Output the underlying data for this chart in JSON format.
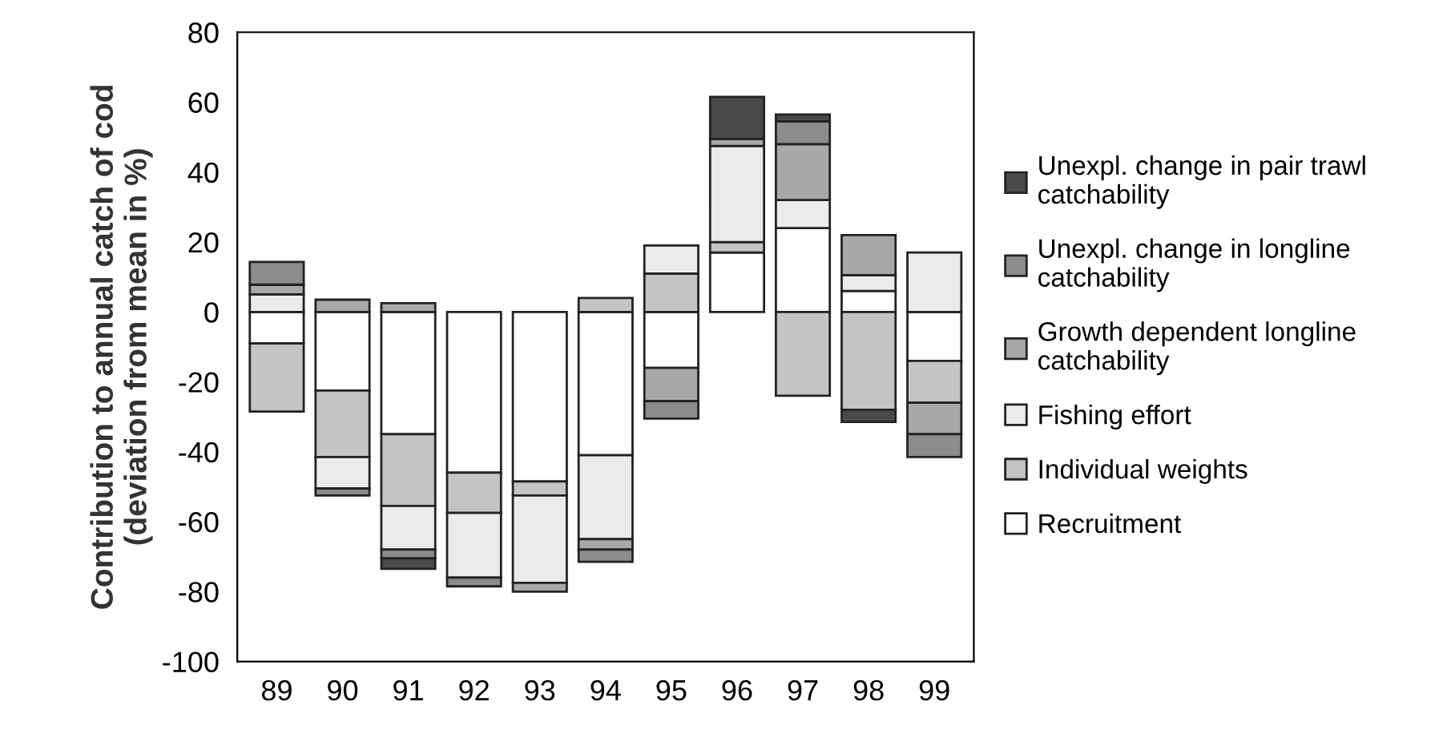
{
  "chart_data": {
    "type": "bar",
    "stacked": true,
    "ylabel": "Contribution to annual catch of cod\n(deviation from mean in %)",
    "categories": [
      "89",
      "90",
      "91",
      "92",
      "93",
      "94",
      "95",
      "96",
      "97",
      "98",
      "99"
    ],
    "ylim": [
      -100,
      80
    ],
    "yticks": [
      -100,
      -80,
      -60,
      -40,
      -20,
      0,
      20,
      40,
      60,
      80
    ],
    "grid": false,
    "legend": "right",
    "series": [
      {
        "name": "Recruitment",
        "color": "#ffffff",
        "values": [
          -9,
          -22.5,
          -35,
          -46,
          -48.5,
          -41,
          -16,
          17,
          24,
          6,
          -14
        ]
      },
      {
        "name": "Individual weights",
        "color": "#c4c4c4",
        "values": [
          -19.5,
          -19,
          -20.5,
          -11.5,
          -4,
          4,
          11,
          3,
          -24,
          -28,
          -12
        ]
      },
      {
        "name": "Fishing effort",
        "color": "#ebebeb",
        "values": [
          5,
          -9,
          -12.5,
          -18.5,
          -25,
          -24,
          8,
          27.5,
          8,
          4.5,
          17
        ]
      },
      {
        "name": "Growth dependent longline\ncatchability",
        "color": "#a8a8a8",
        "values": [
          2.8,
          3.5,
          2.5,
          null,
          -2.5,
          -3,
          -9.5,
          2,
          16,
          11.5,
          -9
        ]
      },
      {
        "name": "Unexpl. change in longline\ncatchability",
        "color": "#8c8c8c",
        "values": [
          6.5,
          -2,
          -2.5,
          -2.5,
          null,
          -3.5,
          -5,
          null,
          6.5,
          null,
          -6.5
        ]
      },
      {
        "name": "Unexpl. change in pair trawl\ncatchability",
        "color": "#4a4a4a",
        "values": [
          null,
          null,
          -3,
          null,
          null,
          null,
          null,
          12,
          2,
          -3.5,
          null
        ]
      }
    ]
  }
}
